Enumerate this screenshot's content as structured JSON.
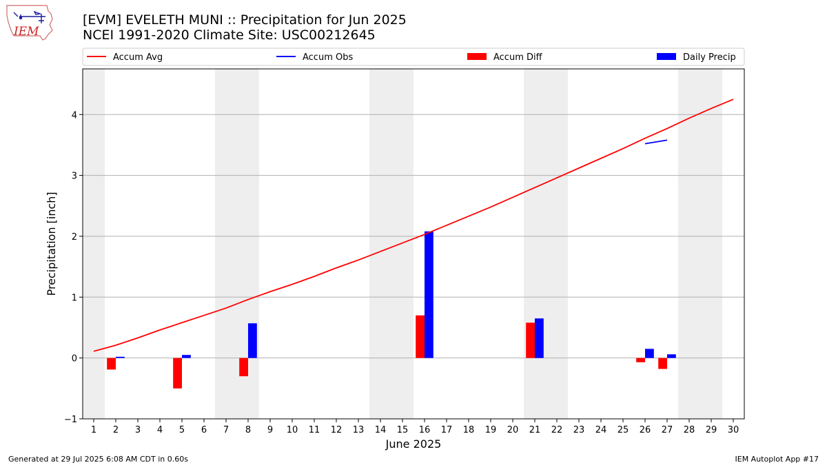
{
  "logo": {
    "text": "IEM"
  },
  "chart_data": {
    "type": "bar",
    "title": "[EVM] EVELETH MUNI :: Precipitation for Jun 2025",
    "subtitle": "NCEI 1991-2020 Climate Site: USC00212645",
    "xlabel": "June 2025",
    "ylabel": "Precipitation [inch]",
    "xlim": [
      0.5,
      30.5
    ],
    "ylim": [
      -1,
      4.75
    ],
    "yticks": [
      -1,
      0,
      1,
      2,
      3,
      4
    ],
    "ytick_labels": [
      "−1",
      "0",
      "1",
      "2",
      "3",
      "4"
    ],
    "xticks": [
      1,
      2,
      3,
      4,
      5,
      6,
      7,
      8,
      9,
      10,
      11,
      12,
      13,
      14,
      15,
      16,
      17,
      18,
      19,
      20,
      21,
      22,
      23,
      24,
      25,
      26,
      27,
      28,
      29,
      30
    ],
    "xtick_labels": [
      "1",
      "2",
      "3",
      "4",
      "5",
      "6",
      "7",
      "8",
      "9",
      "10",
      "11",
      "12",
      "13",
      "14",
      "15",
      "16",
      "17",
      "18",
      "19",
      "20",
      "21",
      "22",
      "23",
      "24",
      "25",
      "26",
      "27",
      "28",
      "29",
      "30"
    ],
    "grid": "horizontal",
    "weekend_days": [
      1,
      7,
      8,
      14,
      15,
      21,
      22,
      28,
      29
    ],
    "legend": {
      "placement": "top",
      "entries": [
        {
          "label": "Accum Avg",
          "kind": "line",
          "color": "#ff0000"
        },
        {
          "label": "Accum Obs",
          "kind": "line",
          "color": "#0000ff"
        },
        {
          "label": "Accum Diff",
          "kind": "bar",
          "color": "#ff0000"
        },
        {
          "label": "Daily Precip",
          "kind": "bar",
          "color": "#0000ff"
        }
      ]
    },
    "series": [
      {
        "name": "Accum Avg",
        "type": "line",
        "color": "#ff0000",
        "x": [
          1,
          2,
          3,
          4,
          5,
          6,
          7,
          8,
          9,
          10,
          11,
          12,
          13,
          14,
          15,
          16,
          17,
          18,
          19,
          20,
          21,
          22,
          23,
          24,
          25,
          26,
          27,
          28,
          29,
          30
        ],
        "values": [
          0.11,
          0.21,
          0.33,
          0.46,
          0.58,
          0.7,
          0.82,
          0.96,
          1.09,
          1.21,
          1.34,
          1.48,
          1.61,
          1.75,
          1.89,
          2.03,
          2.18,
          2.33,
          2.48,
          2.64,
          2.8,
          2.96,
          3.12,
          3.28,
          3.44,
          3.61,
          3.77,
          3.94,
          4.1,
          4.25
        ]
      },
      {
        "name": "Accum Obs",
        "type": "line",
        "color": "#0000ff",
        "x": [
          26,
          27
        ],
        "values": [
          3.52,
          3.58
        ]
      },
      {
        "name": "Accum Diff",
        "type": "bar",
        "color": "#ff0000",
        "x": [
          2,
          5,
          8,
          16,
          21,
          26,
          27
        ],
        "values": [
          -0.19,
          -0.5,
          -0.3,
          0.7,
          0.58,
          -0.07,
          -0.18
        ]
      },
      {
        "name": "Daily Precip",
        "type": "bar",
        "color": "#0000ff",
        "x": [
          2,
          5,
          8,
          16,
          21,
          26,
          27
        ],
        "values": [
          0.02,
          0.05,
          0.57,
          2.08,
          0.65,
          0.15,
          0.06
        ]
      }
    ]
  },
  "footer": {
    "generated": "Generated at 29 Jul 2025 6:08 AM CDT in 0.60s",
    "app": "IEM Autoplot App #17"
  }
}
